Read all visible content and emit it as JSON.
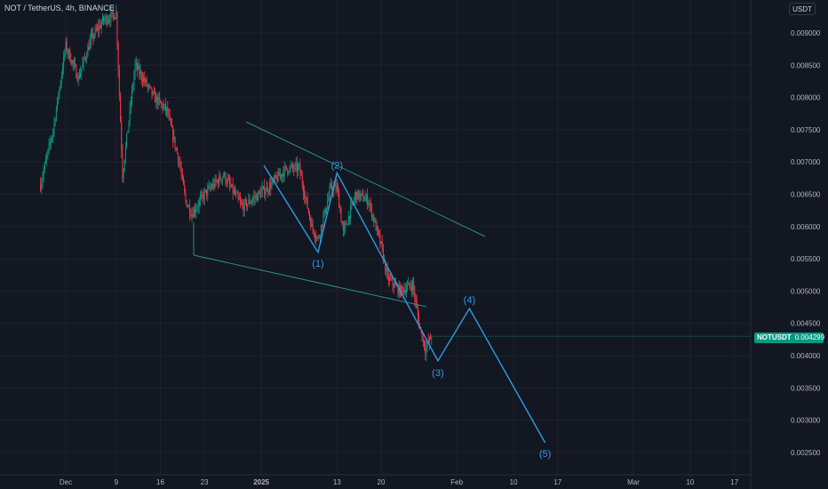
{
  "header": {
    "title": "NOT / TetherUS, 4h, BINANCE"
  },
  "currency_button": "USDT",
  "price_tag": {
    "symbol": "NOTUSDT",
    "value": "0.004299"
  },
  "colors": {
    "background": "#131722",
    "up": "#089981",
    "down": "#f23645",
    "wave": "#2e9be6",
    "channel": "#2a8f86",
    "grid": "#1e222d",
    "text": "#b2b5be"
  },
  "chart_data": {
    "type": "candlestick",
    "title": "NOT / TetherUS, 4h, BINANCE",
    "x_ticks": [
      "Dec",
      "9",
      "16",
      "23",
      "2025",
      "13",
      "20",
      "Feb",
      "10",
      "17",
      "Mar",
      "10",
      "17"
    ],
    "y_ticks": [
      "0.009000",
      "0.008500",
      "0.008000",
      "0.007500",
      "0.007000",
      "0.006500",
      "0.006000",
      "0.005500",
      "0.005000",
      "0.004500",
      "0.004000",
      "0.003500",
      "0.003000",
      "0.002500"
    ],
    "ylim": [
      0.00235,
      0.00935
    ],
    "last_price": 0.004299,
    "price_path": [
      {
        "x": "Nov 27",
        "y": 0.00665
      },
      {
        "x": "Nov 29",
        "y": 0.0075
      },
      {
        "x": "Dec 1",
        "y": 0.0088
      },
      {
        "x": "Dec 3",
        "y": 0.0083
      },
      {
        "x": "Dec 5",
        "y": 0.0089
      },
      {
        "x": "Dec 7",
        "y": 0.0092
      },
      {
        "x": "Dec 9",
        "y": 0.0093
      },
      {
        "x": "Dec 10",
        "y": 0.0068
      },
      {
        "x": "Dec 12",
        "y": 0.0085
      },
      {
        "x": "Dec 15",
        "y": 0.008
      },
      {
        "x": "Dec 17",
        "y": 0.0078
      },
      {
        "x": "Dec 19",
        "y": 0.007
      },
      {
        "x": "Dec 20",
        "y": 0.0064
      },
      {
        "x": "Dec 21",
        "y": 0.0062
      },
      {
        "x": "Dec 23",
        "y": 0.0065
      },
      {
        "x": "Dec 26",
        "y": 0.0068
      },
      {
        "x": "Dec 29",
        "y": 0.0063
      },
      {
        "x": "Jan 2",
        "y": 0.0066
      },
      {
        "x": "Jan 5",
        "y": 0.0069
      },
      {
        "x": "Jan 7",
        "y": 0.0069
      },
      {
        "x": "Jan 9",
        "y": 0.006
      },
      {
        "x": "Jan 10",
        "y": 0.0058
      },
      {
        "x": "Jan 12",
        "y": 0.0066
      },
      {
        "x": "Jan 13",
        "y": 0.0066
      },
      {
        "x": "Jan 14",
        "y": 0.0059
      },
      {
        "x": "Jan 16",
        "y": 0.0065
      },
      {
        "x": "Jan 18",
        "y": 0.0064
      },
      {
        "x": "Jan 20",
        "y": 0.0057
      },
      {
        "x": "Jan 21",
        "y": 0.0052
      },
      {
        "x": "Jan 23",
        "y": 0.005
      },
      {
        "x": "Jan 25",
        "y": 0.0051
      },
      {
        "x": "Jan 26",
        "y": 0.0045
      },
      {
        "x": "Jan 27",
        "y": 0.0041
      },
      {
        "x": "Jan 28",
        "y": 0.0043
      }
    ],
    "wave_labels": [
      {
        "label": "(1)",
        "x": "Jan 10",
        "y": 0.0056
      },
      {
        "label": "(2)",
        "x": "Jan 13",
        "y": 0.00683
      },
      {
        "label": "(3)",
        "x": "Jan 29",
        "y": 0.00392
      },
      {
        "label": "(4)",
        "x": "Feb 3",
        "y": 0.00473
      },
      {
        "label": "(5)",
        "x": "Feb 15",
        "y": 0.00265
      }
    ],
    "grid": false
  }
}
